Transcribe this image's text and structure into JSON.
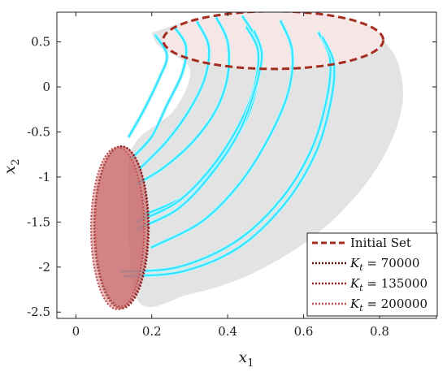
{
  "chart_data": {
    "type": "line",
    "xlabel": "x",
    "xlabel_sub": "1",
    "ylabel": "x",
    "ylabel_sub": "2",
    "xlim": [
      -0.05,
      0.95
    ],
    "ylim": [
      -2.57,
      0.83
    ],
    "xticks": [
      0,
      0.2,
      0.4,
      0.6,
      0.8
    ],
    "xtick_labels": [
      "0",
      "0.2",
      "0.4",
      "0.6",
      "0.8"
    ],
    "yticks": [
      0.5,
      0,
      -0.5,
      -1,
      -1.5,
      -2,
      -2.5
    ],
    "ytick_labels": [
      "0.5",
      "0",
      "-0.5",
      "-1",
      "-1.5",
      "-2",
      "-2.5"
    ],
    "grid": false,
    "legend_position": "bottom-right",
    "colors": {
      "initial_set": "#a32d1e",
      "reach_region": "#e3e3e3",
      "trajectories": "#33e3ff",
      "target_fill": "#c96a6a",
      "kt_70000": "#5a1010",
      "kt_135000": "#9a2020",
      "kt_200000": "#c05050"
    },
    "legend": [
      {
        "key": "initial_set",
        "label": "Initial Set",
        "style": "dashed"
      },
      {
        "key": "kt_70000",
        "label_main": "K",
        "label_sub": "t",
        "label_value": " = 70000",
        "style": "dotted"
      },
      {
        "key": "kt_135000",
        "label_main": "K",
        "label_sub": "t",
        "label_value": " = 135000",
        "style": "dotted"
      },
      {
        "key": "kt_200000",
        "label_main": "K",
        "label_sub": "t",
        "label_value": " = 200000",
        "style": "dotted"
      }
    ],
    "initial_set": {
      "center": [
        0.52,
        0.52
      ],
      "radius_x": 0.29,
      "radius_y": 0.32
    },
    "target_ellipses": [
      {
        "name": "K_t = 70000",
        "center": [
          0.12,
          -1.55
        ],
        "radius_x": 0.07,
        "radius_y": 0.89
      },
      {
        "name": "K_t = 135000",
        "center": [
          0.12,
          -1.56
        ],
        "radius_x": 0.072,
        "radius_y": 0.9
      },
      {
        "name": "K_t = 200000",
        "center": [
          0.11,
          -1.57
        ],
        "radius_x": 0.07,
        "radius_y": 0.9
      }
    ],
    "reach_region": [
      [
        0.2,
        0.6
      ],
      [
        0.32,
        0.75
      ],
      [
        0.52,
        0.82
      ],
      [
        0.7,
        0.78
      ],
      [
        0.8,
        0.55
      ],
      [
        0.85,
        0.25
      ],
      [
        0.86,
        -0.2
      ],
      [
        0.82,
        -0.7
      ],
      [
        0.74,
        -1.2
      ],
      [
        0.62,
        -1.68
      ],
      [
        0.46,
        -2.08
      ],
      [
        0.3,
        -2.3
      ],
      [
        0.16,
        -2.35
      ],
      [
        0.14,
        -1.0
      ],
      [
        0.16,
        -0.6
      ],
      [
        0.26,
        -0.25
      ],
      [
        0.3,
        0.2
      ],
      [
        0.22,
        0.45
      ],
      [
        0.2,
        0.6
      ]
    ],
    "series": [
      {
        "points": [
          [
            0.21,
            0.57
          ],
          [
            0.24,
            0.35
          ],
          [
            0.22,
            0.1
          ],
          [
            0.18,
            -0.25
          ],
          [
            0.14,
            -0.55
          ]
        ]
      },
      {
        "points": [
          [
            0.26,
            0.66
          ],
          [
            0.29,
            0.45
          ],
          [
            0.28,
            0.15
          ],
          [
            0.24,
            -0.2
          ],
          [
            0.2,
            -0.55
          ],
          [
            0.15,
            -0.78
          ]
        ]
      },
      {
        "points": [
          [
            0.32,
            0.72
          ],
          [
            0.35,
            0.45
          ],
          [
            0.34,
            0.1
          ],
          [
            0.3,
            -0.25
          ],
          [
            0.24,
            -0.6
          ],
          [
            0.17,
            -0.9
          ]
        ]
      },
      {
        "points": [
          [
            0.37,
            0.77
          ],
          [
            0.4,
            0.5
          ],
          [
            0.4,
            0.12
          ],
          [
            0.37,
            -0.25
          ],
          [
            0.31,
            -0.6
          ],
          [
            0.23,
            -0.9
          ],
          [
            0.16,
            -1.08
          ]
        ]
      },
      {
        "points": [
          [
            0.44,
            0.78
          ],
          [
            0.48,
            0.48
          ],
          [
            0.48,
            0.1
          ],
          [
            0.45,
            -0.35
          ],
          [
            0.38,
            -0.8
          ],
          [
            0.29,
            -1.2
          ],
          [
            0.18,
            -1.42
          ]
        ]
      },
      {
        "points": [
          [
            0.45,
            0.66
          ],
          [
            0.48,
            0.4
          ],
          [
            0.47,
            0.0
          ],
          [
            0.43,
            -0.42
          ],
          [
            0.36,
            -0.88
          ],
          [
            0.27,
            -1.27
          ],
          [
            0.16,
            -1.5
          ]
        ]
      },
      {
        "points": [
          [
            0.47,
            0.62
          ],
          [
            0.49,
            0.35
          ],
          [
            0.47,
            -0.05
          ],
          [
            0.43,
            -0.5
          ],
          [
            0.36,
            -0.95
          ],
          [
            0.27,
            -1.35
          ],
          [
            0.16,
            -1.58
          ]
        ]
      },
      {
        "points": [
          [
            0.54,
            0.73
          ],
          [
            0.57,
            0.4
          ],
          [
            0.56,
            -0.05
          ],
          [
            0.51,
            -0.55
          ],
          [
            0.43,
            -1.08
          ],
          [
            0.33,
            -1.5
          ],
          [
            0.2,
            -1.78
          ]
        ]
      },
      {
        "points": [
          [
            0.64,
            0.6
          ],
          [
            0.67,
            0.3
          ],
          [
            0.66,
            -0.15
          ],
          [
            0.62,
            -0.7
          ],
          [
            0.54,
            -1.25
          ],
          [
            0.42,
            -1.72
          ],
          [
            0.27,
            -2.0
          ],
          [
            0.12,
            -2.05
          ]
        ]
      },
      {
        "points": [
          [
            0.65,
            0.55
          ],
          [
            0.68,
            0.25
          ],
          [
            0.67,
            -0.2
          ],
          [
            0.63,
            -0.75
          ],
          [
            0.55,
            -1.3
          ],
          [
            0.43,
            -1.78
          ],
          [
            0.28,
            -2.05
          ],
          [
            0.13,
            -2.1
          ]
        ]
      }
    ]
  }
}
